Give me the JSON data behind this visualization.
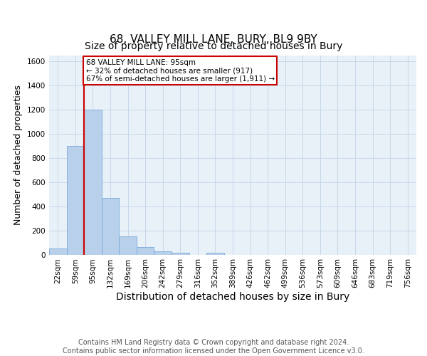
{
  "title": "68, VALLEY MILL LANE, BURY, BL9 9BY",
  "subtitle": "Size of property relative to detached houses in Bury",
  "xlabel": "Distribution of detached houses by size in Bury",
  "ylabel": "Number of detached properties",
  "bar_labels": [
    "22sqm",
    "59sqm",
    "95sqm",
    "132sqm",
    "169sqm",
    "206sqm",
    "242sqm",
    "279sqm",
    "316sqm",
    "352sqm",
    "389sqm",
    "426sqm",
    "462sqm",
    "499sqm",
    "536sqm",
    "573sqm",
    "609sqm",
    "646sqm",
    "683sqm",
    "719sqm",
    "756sqm"
  ],
  "bar_heights": [
    50,
    900,
    1200,
    470,
    150,
    60,
    25,
    15,
    0,
    15,
    0,
    0,
    0,
    0,
    0,
    0,
    0,
    0,
    0,
    0,
    0
  ],
  "bar_color": "#b8d0ea",
  "bar_edge_color": "#7aaadb",
  "highlight_index": 2,
  "highlight_color": "#cc0000",
  "ylim": [
    0,
    1650
  ],
  "yticks": [
    0,
    200,
    400,
    600,
    800,
    1000,
    1200,
    1400,
    1600
  ],
  "annotation_text": "68 VALLEY MILL LANE: 95sqm\n← 32% of detached houses are smaller (917)\n67% of semi-detached houses are larger (1,911) →",
  "annotation_box_color": "#ffffff",
  "annotation_box_edge": "#cc0000",
  "grid_color": "#c8d8e8",
  "background_color": "#e8f0f8",
  "footer_text": "Contains HM Land Registry data © Crown copyright and database right 2024.\nContains public sector information licensed under the Open Government Licence v3.0.",
  "title_fontsize": 11,
  "subtitle_fontsize": 10,
  "xlabel_fontsize": 10,
  "ylabel_fontsize": 9,
  "tick_fontsize": 7.5,
  "footer_fontsize": 7
}
